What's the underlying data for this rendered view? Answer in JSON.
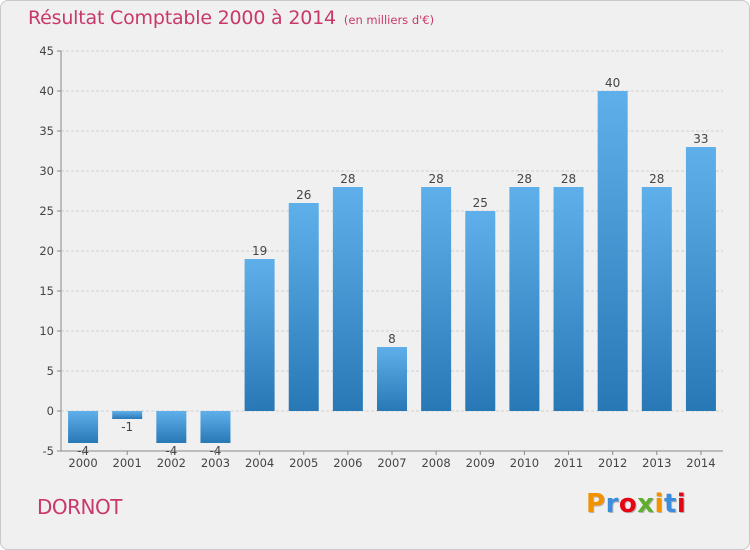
{
  "chart_data": {
    "type": "bar",
    "title": "Résultat Comptable 2000 à 2014",
    "unit": "(en milliers d'€)",
    "categories": [
      "2000",
      "2001",
      "2002",
      "2003",
      "2004",
      "2005",
      "2006",
      "2007",
      "2008",
      "2009",
      "2010",
      "2011",
      "2012",
      "2013",
      "2014"
    ],
    "values": [
      -4,
      -1,
      -4,
      -4,
      19,
      26,
      28,
      8,
      28,
      25,
      28,
      28,
      40,
      28,
      33
    ],
    "data_labels": [
      "-4",
      "-1",
      "-4",
      "-4",
      "19",
      "26",
      "28",
      "8",
      "28",
      "25",
      "28",
      "28",
      "40",
      "28",
      "33"
    ],
    "yticks": [
      -5,
      0,
      5,
      10,
      15,
      20,
      25,
      30,
      35,
      40,
      45
    ],
    "ylim": [
      -5,
      45
    ],
    "xlabel": "",
    "ylabel": "",
    "grid": true,
    "bar_color_light": "#5fb0ea",
    "bar_color_dark": "#2878b6"
  },
  "commune": "DORNOT",
  "brand": {
    "letters": [
      "P",
      "r",
      "o",
      "x",
      "i",
      "t",
      "i"
    ],
    "colors": [
      "#f39200",
      "#3c8dde",
      "#e30613",
      "#5fae2e",
      "#f39200",
      "#3c8dde",
      "#e30613"
    ]
  },
  "colors": {
    "accent": "#c8386b",
    "background": "#f0f0f0"
  }
}
